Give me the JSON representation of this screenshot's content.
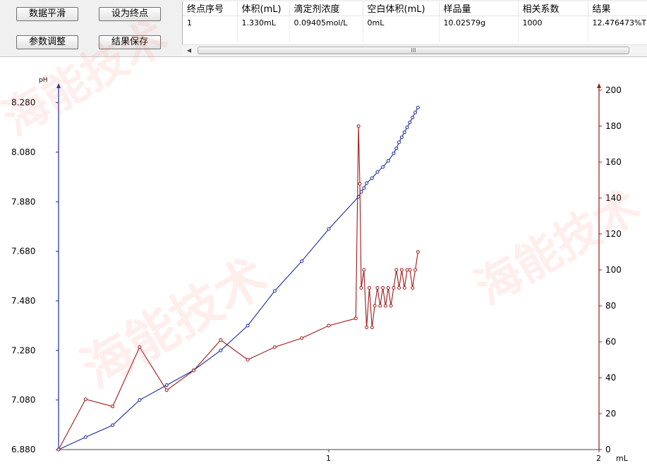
{
  "toolbar": {
    "smooth_button": "数据平滑",
    "set_endpoint_button": "设为终点",
    "adjust_params_button": "参数调整",
    "save_result_button": "结果保存"
  },
  "results_table": {
    "columns": [
      "终点序号",
      "体积(mL)",
      "滴定剂浓度",
      "空白体积(mL)",
      "样品量",
      "相关系数",
      "结果"
    ],
    "rows": [
      [
        "1",
        "1.330mL",
        "0.09405mol/L",
        "0mL",
        "10.02579g",
        "1000",
        "12.476473%T"
      ]
    ]
  },
  "scrollbar": {
    "thumb_grip": "III"
  },
  "watermark": {
    "text": "海能技术"
  },
  "chart_data": {
    "type": "line",
    "xlabel": "mL",
    "ylabel_left": "pH",
    "xlim": [
      0,
      2
    ],
    "ylim_left": [
      6.88,
      8.33
    ],
    "ylim_right": [
      0,
      200
    ],
    "x_ticks": [
      1,
      2
    ],
    "y_left_ticks": [
      "6.880",
      "7.080",
      "7.280",
      "7.480",
      "7.680",
      "7.880",
      "8.080",
      "8.280"
    ],
    "y_right_ticks": [
      "0",
      "20",
      "40",
      "60",
      "80",
      "100",
      "120",
      "140",
      "160",
      "180",
      "200"
    ],
    "series": [
      {
        "axis": "left",
        "color": "#1a2a9a",
        "x": [
          0,
          0.1,
          0.2,
          0.3,
          0.4,
          0.5,
          0.6,
          0.7,
          0.8,
          0.9,
          1.0,
          1.11,
          1.12,
          1.13,
          1.14,
          1.16,
          1.18,
          1.2,
          1.22,
          1.24,
          1.25,
          1.26,
          1.27,
          1.28,
          1.29,
          1.3,
          1.31,
          1.32,
          1.33
        ],
        "values": [
          6.88,
          6.93,
          6.978,
          7.08,
          7.14,
          7.2,
          7.28,
          7.38,
          7.52,
          7.64,
          7.77,
          7.9,
          7.92,
          7.935,
          7.955,
          7.975,
          8.0,
          8.02,
          8.045,
          8.075,
          8.095,
          8.12,
          8.14,
          8.16,
          8.18,
          8.2,
          8.22,
          8.24,
          8.26
        ]
      },
      {
        "axis": "right",
        "color": "#a01818",
        "x": [
          0,
          0.1,
          0.2,
          0.3,
          0.4,
          0.5,
          0.6,
          0.7,
          0.8,
          0.9,
          1.0,
          1.1,
          1.11,
          1.115,
          1.12,
          1.13,
          1.14,
          1.15,
          1.16,
          1.17,
          1.18,
          1.19,
          1.2,
          1.21,
          1.22,
          1.23,
          1.24,
          1.25,
          1.26,
          1.27,
          1.28,
          1.29,
          1.3,
          1.31,
          1.32,
          1.33
        ],
        "values": [
          0,
          28,
          24,
          57,
          33,
          44,
          61,
          50,
          57,
          62,
          69,
          73,
          180,
          148,
          90,
          100,
          68,
          90,
          68,
          80,
          90,
          80,
          90,
          80,
          90,
          80,
          90,
          100,
          90,
          100,
          90,
          100,
          100,
          90,
          100,
          110
        ]
      }
    ]
  }
}
